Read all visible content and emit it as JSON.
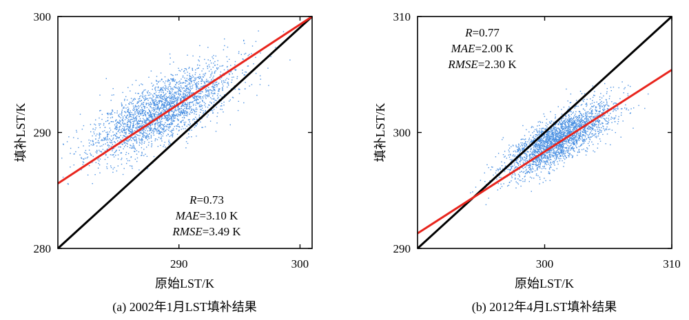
{
  "chart_data": [
    {
      "type": "scatter",
      "panel": "a",
      "caption": "(a) 2002年1月LST填补结果",
      "xlabel": "原始LST/K",
      "ylabel": "填补LST/K",
      "xlim": [
        280,
        301
      ],
      "ylim": [
        280,
        300
      ],
      "xticks": [
        290,
        300
      ],
      "yticks": [
        280,
        290,
        300
      ],
      "point_color": "#4a90e2",
      "cloud": {
        "center": [
          288.6,
          291.9
        ],
        "std": [
          2.9,
          2.0
        ],
        "corr": 0.73,
        "n": 2600,
        "seed": 11
      },
      "series": [
        {
          "name": "1:1",
          "color": "#000000",
          "x": [
            280,
            301
          ],
          "y": [
            280,
            300
          ]
        },
        {
          "name": "fit",
          "color": "#e8251d",
          "x": [
            280,
            301
          ],
          "y": [
            285.6,
            300
          ]
        }
      ],
      "stats": {
        "r_label": "R",
        "r_value": "=0.73",
        "mae_label": "MAE",
        "mae_value": "=3.10 K",
        "rmse_label": "RMSE",
        "rmse_value": "=3.49 K"
      }
    },
    {
      "type": "scatter",
      "panel": "b",
      "caption": "(b) 2012年4月LST填补结果",
      "xlabel": "原始LST/K",
      "ylabel": "填补LST/K",
      "xlim": [
        290,
        310
      ],
      "ylim": [
        290,
        310
      ],
      "xticks": [
        300,
        310
      ],
      "yticks": [
        290,
        300,
        310
      ],
      "point_color": "#4a90e2",
      "cloud": {
        "center": [
          301.0,
          299.4
        ],
        "std": [
          2.1,
          1.55
        ],
        "corr": 0.77,
        "n": 2600,
        "seed": 29
      },
      "series": [
        {
          "name": "1:1",
          "color": "#000000",
          "x": [
            290,
            310
          ],
          "y": [
            290,
            310
          ]
        },
        {
          "name": "fit",
          "color": "#e8251d",
          "x": [
            290,
            310
          ],
          "y": [
            291.3,
            305.4
          ]
        }
      ],
      "stats": {
        "r_label": "R",
        "r_value": "=0.77",
        "mae_label": "MAE",
        "mae_value": "=2.00 K",
        "rmse_label": "RMSE",
        "rmse_value": "=2.30 K"
      }
    }
  ]
}
